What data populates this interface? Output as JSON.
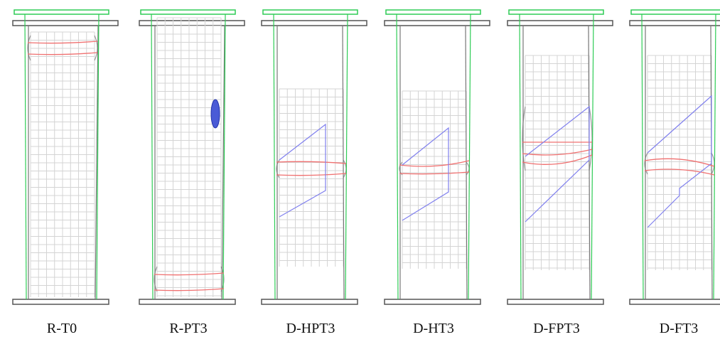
{
  "panels": [
    {
      "label": "R-T0"
    },
    {
      "label": "R-PT3"
    },
    {
      "label": "D-HPT3"
    },
    {
      "label": "D-HT3"
    },
    {
      "label": "D-FPT3"
    },
    {
      "label": "D-FT3"
    }
  ]
}
